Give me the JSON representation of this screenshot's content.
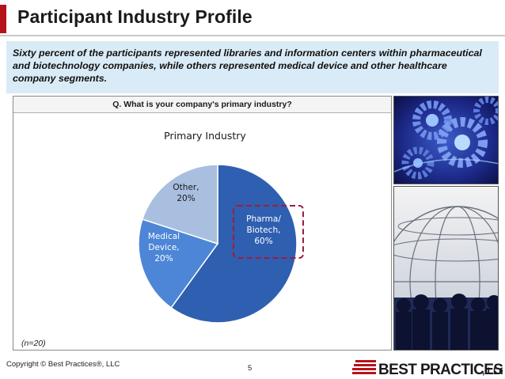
{
  "slide": {
    "title": "Participant Industry Profile",
    "summary": "Sixty percent of the participants represented libraries and information centers within pharmaceutical and biotechnology companies, while others represented medical device and other healthcare company segments.",
    "question": "Q. What is your company's primary industry?",
    "sample_note": "(n=20)",
    "copyright": "Copyright ©  Best Practices®, LLC",
    "page_number": "5",
    "logo_text": "BEST PRACTICES",
    "logo_suffix": ", LLC",
    "accent_color": "#b5121b"
  },
  "chart_data": {
    "type": "pie",
    "title": "Primary Industry",
    "slices": [
      {
        "label_lines": [
          "Pharma/",
          "Biotech,",
          "60%"
        ],
        "value": 60,
        "color": "#2f5fb0",
        "highlighted": true
      },
      {
        "label_lines": [
          "Medical",
          "Device,",
          "20%"
        ],
        "value": 20,
        "color": "#4d86d6",
        "highlighted": false
      },
      {
        "label_lines": [
          "Other,",
          "20%"
        ],
        "value": 20,
        "color": "#a9bfe0",
        "highlighted": false
      }
    ],
    "highlight_color": "#a01c3c"
  }
}
